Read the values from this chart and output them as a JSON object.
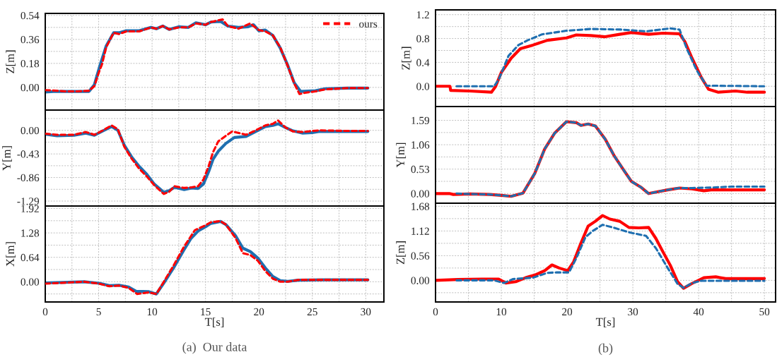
{
  "chart_data": [
    {
      "type": "line",
      "ylabel": "Z[m]",
      "xlim": [
        0,
        31.7
      ],
      "ylim": [
        -0.17,
        0.555
      ],
      "tick_labels": "y",
      "grid": true,
      "legend": "top right",
      "xticks": [
        0,
        {
          "value": 2.5,
          "label": null
        },
        5,
        {
          "value": 7.5,
          "label": null
        },
        10,
        {
          "value": 12.5,
          "label": null
        },
        15,
        {
          "value": 17.5,
          "label": null
        },
        20,
        {
          "value": 22.5,
          "label": null
        },
        25,
        {
          "value": 27.5,
          "label": null
        },
        30
      ],
      "yticks": [
        {
          "value": -0.09,
          "label": null
        },
        {
          "value": 0,
          "label": "0.00"
        },
        {
          "value": 0.09,
          "label": null
        },
        0.18,
        {
          "value": 0.27,
          "label": null
        },
        0.36,
        {
          "value": 0.45,
          "label": null
        },
        0.54
      ],
      "series": [
        {
          "name": "ours",
          "color": "#ff0000",
          "line_style": "dashed",
          "x": [
            0,
            1,
            2,
            3,
            4.1,
            4.6,
            5.05,
            5.3,
            5.7,
            6.4,
            6.9,
            7.6,
            8.8,
            9.9,
            10.4,
            11,
            11.6,
            12.5,
            13.4,
            14.1,
            15,
            15.5,
            16.6,
            17.1,
            18.1,
            19.2,
            19.5,
            20,
            20.6,
            21.3,
            22,
            22.7,
            23.3,
            23.8,
            24.3,
            25.3,
            26.2,
            28.3,
            30.2
          ],
          "values": [
            -0.02,
            -0.025,
            -0.03,
            -0.03,
            -0.025,
            0.01,
            0.12,
            0.17,
            0.3,
            0.41,
            0.4,
            0.42,
            0.42,
            0.45,
            0.44,
            0.46,
            0.435,
            0.45,
            0.45,
            0.48,
            0.47,
            0.49,
            0.51,
            0.46,
            0.44,
            0.48,
            0.46,
            0.43,
            0.42,
            0.39,
            0.3,
            0.16,
            0.03,
            -0.05,
            -0.04,
            -0.03,
            -0.015,
            -0.005,
            -0.005
          ]
        },
        {
          "color": "#1f6fb0",
          "line_style": "solid",
          "x": [
            0,
            1,
            2,
            3,
            4.1,
            4.6,
            5.05,
            5.7,
            6.4,
            6.9,
            7.6,
            8.8,
            9.9,
            10.4,
            11,
            11.6,
            12.5,
            13.4,
            14.1,
            15,
            15.5,
            16.4,
            17.1,
            18.1,
            19,
            19.5,
            20,
            20.6,
            21.3,
            22,
            22.7,
            23.3,
            23.9,
            25.3,
            26.2,
            28.3,
            30.2
          ],
          "values": [
            -0.035,
            -0.03,
            -0.03,
            -0.03,
            -0.03,
            0.02,
            0.145,
            0.31,
            0.41,
            0.41,
            0.425,
            0.425,
            0.45,
            0.44,
            0.46,
            0.435,
            0.455,
            0.45,
            0.485,
            0.47,
            0.49,
            0.495,
            0.46,
            0.45,
            0.455,
            0.47,
            0.425,
            0.43,
            0.39,
            0.295,
            0.165,
            0.035,
            -0.03,
            -0.025,
            -0.01,
            -0.005,
            -0.005
          ]
        }
      ]
    },
    {
      "type": "line",
      "ylabel": "Y[m]",
      "xlim": [
        0,
        31.7
      ],
      "ylim": [
        -1.38,
        0.37
      ],
      "tick_labels": "y",
      "grid": true,
      "xticks": [
        0,
        {
          "value": 2.5,
          "label": null
        },
        5,
        {
          "value": 7.5,
          "label": null
        },
        10,
        {
          "value": 12.5,
          "label": null
        },
        15,
        {
          "value": 17.5,
          "label": null
        },
        20,
        {
          "value": 22.5,
          "label": null
        },
        25,
        {
          "value": 27.5,
          "label": null
        },
        30
      ],
      "yticks": [
        -1.29,
        {
          "value": -1.075,
          "label": null
        },
        -0.86,
        {
          "value": -0.645,
          "label": null
        },
        -0.43,
        {
          "value": -0.215,
          "label": null
        },
        {
          "value": 0,
          "label": "0.00"
        },
        {
          "value": 0.215,
          "label": null
        }
      ],
      "series": [
        {
          "color": "#ff0000",
          "line_style": "dashed",
          "x": [
            0,
            1.1,
            2.7,
            3.8,
            4.6,
            5.5,
            6.2,
            6.8,
            7.4,
            8.1,
            8.8,
            9.5,
            10.2,
            11.1,
            11.6,
            12.1,
            13,
            13.7,
            14.3,
            14.8,
            15.3,
            15.7,
            16.2,
            16.9,
            17.5,
            18.8,
            19.7,
            20.6,
            21.3,
            21.8,
            22.5,
            23.2,
            24.1,
            25,
            25.7,
            28.3,
            30.2
          ],
          "values": [
            -0.06,
            -0.08,
            -0.08,
            -0.03,
            -0.08,
            0.01,
            0.09,
            0.02,
            -0.3,
            -0.52,
            -0.7,
            -0.84,
            -1.0,
            -1.16,
            -1.12,
            -1.02,
            -1.05,
            -1.04,
            -1.02,
            -0.9,
            -0.65,
            -0.4,
            -0.2,
            -0.1,
            -0.02,
            -0.08,
            0.0,
            0.09,
            0.12,
            0.18,
            0.05,
            -0.02,
            -0.03,
            -0.01,
            0.0,
            -0.01,
            -0.01
          ]
        },
        {
          "color": "#1f6fb0",
          "line_style": "solid",
          "x": [
            0,
            1.1,
            2.7,
            3.8,
            4.6,
            5.5,
            6.2,
            6.8,
            7.4,
            8.1,
            8.8,
            9.5,
            10.2,
            11.1,
            11.6,
            12.1,
            13,
            13.7,
            14.3,
            14.8,
            15.3,
            15.7,
            16.2,
            16.9,
            17.7,
            18.8,
            19.7,
            20.6,
            21.3,
            21.8,
            22.5,
            23.2,
            24.1,
            25,
            25.7,
            28.3,
            30.2
          ],
          "values": [
            -0.07,
            -0.1,
            -0.09,
            -0.05,
            -0.09,
            0.0,
            0.07,
            0.0,
            -0.27,
            -0.49,
            -0.66,
            -0.8,
            -0.98,
            -1.13,
            -1.1,
            -1.04,
            -1.08,
            -1.05,
            -1.06,
            -0.98,
            -0.75,
            -0.53,
            -0.38,
            -0.24,
            -0.13,
            -0.11,
            -0.02,
            0.07,
            0.09,
            0.12,
            0.05,
            -0.01,
            -0.05,
            -0.04,
            -0.02,
            -0.02,
            -0.02
          ]
        }
      ]
    },
    {
      "type": "line",
      "ylabel": "X[m]",
      "xlabel": "T[s]",
      "xlim": [
        0,
        31.7
      ],
      "ylim": [
        -0.53,
        1.985
      ],
      "grid": true,
      "annotations": [
        "(a)  Our data"
      ],
      "xticks": [
        0,
        {
          "value": 2.5,
          "label": null
        },
        5,
        {
          "value": 7.5,
          "label": null
        },
        10,
        {
          "value": 12.5,
          "label": null
        },
        15,
        {
          "value": 17.5,
          "label": null
        },
        20,
        {
          "value": 22.5,
          "label": null
        },
        25,
        {
          "value": 27.5,
          "label": null
        },
        30
      ],
      "yticks": [
        {
          "value": -0.32,
          "label": null
        },
        {
          "value": 0,
          "label": "0.00"
        },
        {
          "value": 0.32,
          "label": null
        },
        0.64,
        {
          "value": 0.96,
          "label": null
        },
        1.28,
        {
          "value": 1.6,
          "label": null
        },
        1.92
      ],
      "series": [
        {
          "color": "#ff0000",
          "line_style": "dashed",
          "x": [
            0,
            3.65,
            5.05,
            6,
            6.9,
            7.8,
            8.6,
            9.7,
            10.4,
            11.1,
            12,
            12.95,
            14,
            15,
            15.5,
            16.4,
            16.9,
            17.8,
            18.5,
            19.2,
            19.9,
            20.6,
            21.3,
            22,
            22.7,
            23.7,
            26,
            28.3,
            30.2
          ],
          "values": [
            -0.05,
            0.0,
            -0.05,
            -0.12,
            -0.1,
            -0.16,
            -0.32,
            -0.28,
            -0.32,
            -0.0,
            0.42,
            0.9,
            1.35,
            1.48,
            1.56,
            1.59,
            1.5,
            1.15,
            0.75,
            0.7,
            0.55,
            0.28,
            0.08,
            0.0,
            0.0,
            0.05,
            0.05,
            0.05,
            0.05
          ]
        },
        {
          "color": "#1f6fb0",
          "line_style": "solid",
          "x": [
            0,
            3.65,
            5.05,
            6,
            6.9,
            7.8,
            8.5,
            9.7,
            10.4,
            11.1,
            12,
            12.95,
            13.65,
            14.35,
            15,
            15.5,
            16.4,
            16.9,
            17.8,
            18.5,
            19.2,
            19.9,
            20.6,
            21.3,
            22,
            22.7,
            23.7,
            26,
            28.3,
            30.2
          ],
          "values": [
            -0.03,
            0.0,
            -0.04,
            -0.1,
            -0.09,
            -0.14,
            -0.25,
            -0.26,
            -0.32,
            -0.03,
            0.36,
            0.82,
            1.14,
            1.34,
            1.44,
            1.53,
            1.58,
            1.5,
            1.21,
            0.88,
            0.79,
            0.62,
            0.36,
            0.14,
            0.03,
            0.01,
            0.04,
            0.05,
            0.05,
            0.05
          ]
        }
      ]
    },
    {
      "type": "line",
      "ylabel": "Z[m]",
      "xlim": [
        0,
        51.7
      ],
      "ylim": [
        -0.34,
        1.28
      ],
      "tick_labels": "y",
      "grid": true,
      "xticks": [
        0,
        {
          "value": 5,
          "label": null
        },
        10,
        {
          "value": 15,
          "label": null
        },
        20,
        {
          "value": 25,
          "label": null
        },
        30,
        {
          "value": 35,
          "label": null
        },
        40,
        {
          "value": 45,
          "label": null
        },
        50
      ],
      "yticks": [
        {
          "value": -0.2,
          "label": null
        },
        {
          "value": 0,
          "label": "0.0"
        },
        {
          "value": 0.2,
          "label": null
        },
        0.4,
        {
          "value": 0.6,
          "label": null
        },
        0.8,
        {
          "value": 1.0,
          "label": null
        },
        1.2
      ],
      "series": [
        {
          "color": "#1f6fb0",
          "line_style": "dashed",
          "x": [
            3.2,
            8.9,
            9.6,
            11.1,
            12.6,
            14,
            16.2,
            19.9,
            23.6,
            28.3,
            32,
            35.7,
            37.1,
            38.2,
            39.7,
            41.2,
            50
          ],
          "values": [
            0,
            0,
            0.11,
            0.51,
            0.69,
            0.77,
            0.87,
            0.93,
            0.96,
            0.95,
            0.92,
            0.97,
            0.95,
            0.63,
            0.27,
            0.01,
            0
          ]
        },
        {
          "color": "#ff0000",
          "line_style": "solid",
          "x": [
            0,
            2.2,
            2.3,
            5.2,
            8.5,
            9.1,
            10,
            11.5,
            12.9,
            14.8,
            17,
            19.9,
            21.4,
            23.6,
            25.8,
            28,
            29.8,
            32.4,
            34.6,
            37.1,
            37.9,
            39,
            40.4,
            41.5,
            43,
            45.6,
            47.4,
            50
          ],
          "values": [
            0,
            0,
            -0.07,
            -0.08,
            -0.1,
            -0.01,
            0.23,
            0.47,
            0.63,
            0.69,
            0.77,
            0.81,
            0.86,
            0.85,
            0.83,
            0.87,
            0.9,
            0.87,
            0.89,
            0.88,
            0.75,
            0.47,
            0.15,
            -0.05,
            -0.1,
            -0.08,
            -0.1,
            -0.1
          ]
        }
      ]
    },
    {
      "type": "line",
      "ylabel": "Y[m]",
      "xlim": [
        0,
        51.7
      ],
      "ylim": [
        -0.21,
        1.89
      ],
      "tick_labels": "y",
      "grid": true,
      "xticks": [
        0,
        {
          "value": 5,
          "label": null
        },
        10,
        {
          "value": 15,
          "label": null
        },
        20,
        {
          "value": 25,
          "label": null
        },
        30,
        {
          "value": 35,
          "label": null
        },
        40,
        {
          "value": 45,
          "label": null
        },
        50
      ],
      "yticks": [
        {
          "value": 0,
          "label": "0.00"
        },
        {
          "value": 0.265,
          "label": null
        },
        0.53,
        {
          "value": 0.795,
          "label": null
        },
        1.06,
        {
          "value": 1.325,
          "label": null
        },
        1.59
      ],
      "series": [
        {
          "color": "#1f6fb0",
          "line_style": "dashed",
          "x": [
            3.2,
            5.2,
            8.2,
            10,
            11.5,
            13.3,
            15.1,
            16.6,
            18.1,
            19.9,
            21.4,
            22.1,
            23.2,
            24.3,
            25.8,
            27.2,
            28.7,
            29.8,
            31.3,
            32.4,
            33.1,
            35.3,
            37.1,
            39,
            42,
            45,
            50
          ],
          "values": [
            0,
            -0.01,
            -0.02,
            -0.04,
            -0.06,
            0.01,
            0.44,
            0.97,
            1.31,
            1.56,
            1.54,
            1.48,
            1.51,
            1.47,
            1.18,
            0.81,
            0.49,
            0.26,
            0.13,
            0,
            0.02,
            0.08,
            0.12,
            0.12,
            0.13,
            0.15,
            0.15
          ]
        },
        {
          "color": "#ff0000",
          "line_style": "solid",
          "x": [
            0,
            2.1,
            2.7,
            5.2,
            8.2,
            10,
            11.5,
            13.3,
            15.1,
            16.6,
            18.1,
            19.9,
            21.4,
            22.1,
            23.2,
            24.3,
            25.8,
            27.2,
            28.7,
            29.8,
            31.3,
            32.4,
            33.1,
            35.3,
            37.1,
            39,
            40.8,
            41.9,
            45.6,
            50
          ],
          "values": [
            0,
            0,
            -0.02,
            -0.01,
            -0.02,
            -0.04,
            -0.06,
            0.01,
            0.44,
            0.97,
            1.31,
            1.56,
            1.54,
            1.48,
            1.51,
            1.47,
            1.18,
            0.81,
            0.49,
            0.26,
            0.13,
            0,
            0.02,
            0.08,
            0.12,
            0.1,
            0.06,
            0.08,
            0.08,
            0.08
          ]
        }
      ]
    },
    {
      "type": "line",
      "ylabel": "Z[m]",
      "xlabel": "T[s]",
      "xlim": [
        0,
        51.7
      ],
      "ylim": [
        -0.49,
        1.75
      ],
      "grid": true,
      "annotations": [
        "(b)"
      ],
      "xticks": [
        0,
        {
          "value": 5,
          "label": null
        },
        10,
        {
          "value": 15,
          "label": null
        },
        20,
        {
          "value": 25,
          "label": null
        },
        30,
        {
          "value": 35,
          "label": null
        },
        40,
        {
          "value": 45,
          "label": null
        },
        50
      ],
      "yticks": [
        {
          "value": -0.28,
          "label": null
        },
        {
          "value": 0,
          "label": "0.00"
        },
        {
          "value": 0.28,
          "label": null
        },
        0.56,
        {
          "value": 0.84,
          "label": null
        },
        1.12,
        {
          "value": 1.4,
          "label": null
        },
        1.68
      ],
      "series": [
        {
          "color": "#1f6fb0",
          "line_style": "dashed",
          "x": [
            3.2,
            8.9,
            10.4,
            11.8,
            14.8,
            17,
            18.4,
            20.3,
            21.4,
            22.8,
            23.9,
            25.4,
            27.2,
            29.4,
            32,
            33.5,
            35.3,
            36.8,
            37.7,
            39,
            40.4,
            50
          ],
          "values": [
            0,
            0,
            -0.06,
            0.03,
            0.06,
            0.17,
            0.18,
            0.18,
            0.5,
            0.98,
            1.12,
            1.26,
            1.19,
            1.09,
            1.01,
            0.73,
            0.28,
            -0.08,
            -0.17,
            -0.06,
            -0.01,
            -0.01
          ]
        },
        {
          "color": "#ff0000",
          "line_style": "solid",
          "x": [
            0,
            3.4,
            7.1,
            9.6,
            10.7,
            12.2,
            13.7,
            15.1,
            16.6,
            17.7,
            18.8,
            20.1,
            21,
            22.1,
            23.2,
            24.3,
            25.4,
            26.5,
            28,
            29.4,
            30.9,
            32.4,
            33.5,
            34.6,
            35.7,
            36.8,
            37.7,
            39,
            40.8,
            42.6,
            44.1,
            46.7,
            50
          ],
          "values": [
            0,
            0.02,
            0.03,
            0.03,
            -0.06,
            -0.03,
            0.06,
            0.12,
            0.22,
            0.35,
            0.28,
            0.22,
            0.42,
            0.84,
            1.23,
            1.34,
            1.47,
            1.39,
            1.34,
            1.2,
            1.19,
            1.2,
            0.95,
            0.64,
            0.34,
            -0.03,
            -0.18,
            -0.07,
            0.06,
            0.08,
            0.04,
            0.04,
            0.04
          ]
        }
      ]
    }
  ]
}
